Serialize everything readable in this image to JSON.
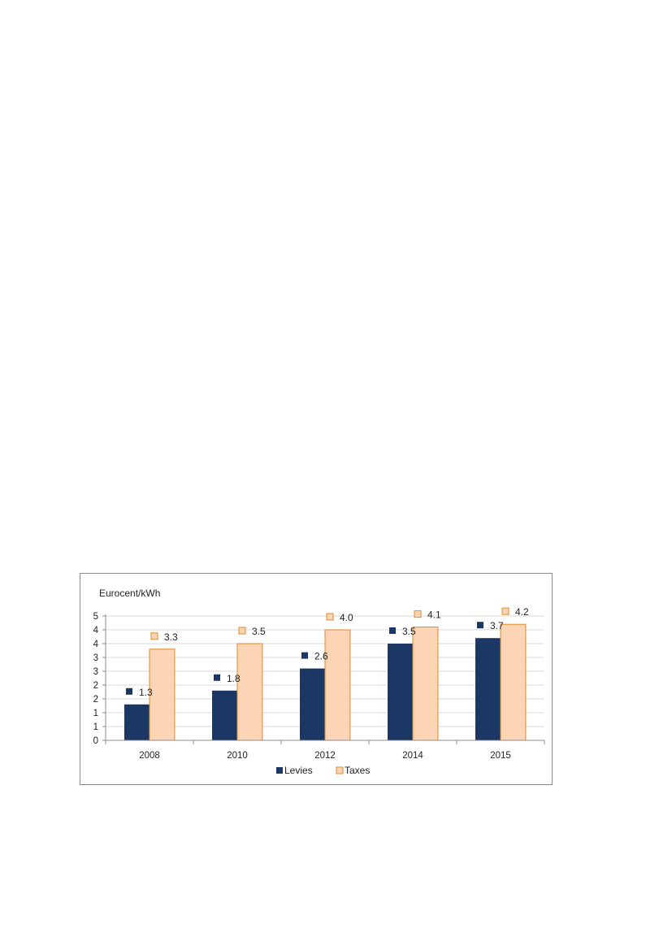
{
  "chart_data": {
    "type": "bar",
    "title": "",
    "xlabel": "",
    "ylabel": "Eurocent/kWh",
    "categories": [
      "2008",
      "2010",
      "2012",
      "2014",
      "2015"
    ],
    "series": [
      {
        "name": "Levies",
        "values": [
          1.3,
          1.8,
          2.6,
          3.5,
          3.7
        ],
        "color": "#1b3864"
      },
      {
        "name": "Taxes",
        "values": [
          3.3,
          3.5,
          4.0,
          4.1,
          4.2
        ],
        "color": "#fbd5b5",
        "edge": "#e08a2e"
      }
    ],
    "data_labels": {
      "Levies": [
        "1.3",
        "1.8",
        "2.6",
        "3.5",
        "3.7"
      ],
      "Taxes": [
        "3.3",
        "3.5",
        "4.0",
        "4.1",
        "4.2"
      ]
    },
    "ylim": [
      0,
      4.5
    ],
    "y_tick_labels": [
      "0",
      "1",
      "1",
      "2",
      "2",
      "3",
      "3",
      "4",
      "4",
      "5"
    ],
    "grid": true,
    "legend_position": "bottom"
  }
}
